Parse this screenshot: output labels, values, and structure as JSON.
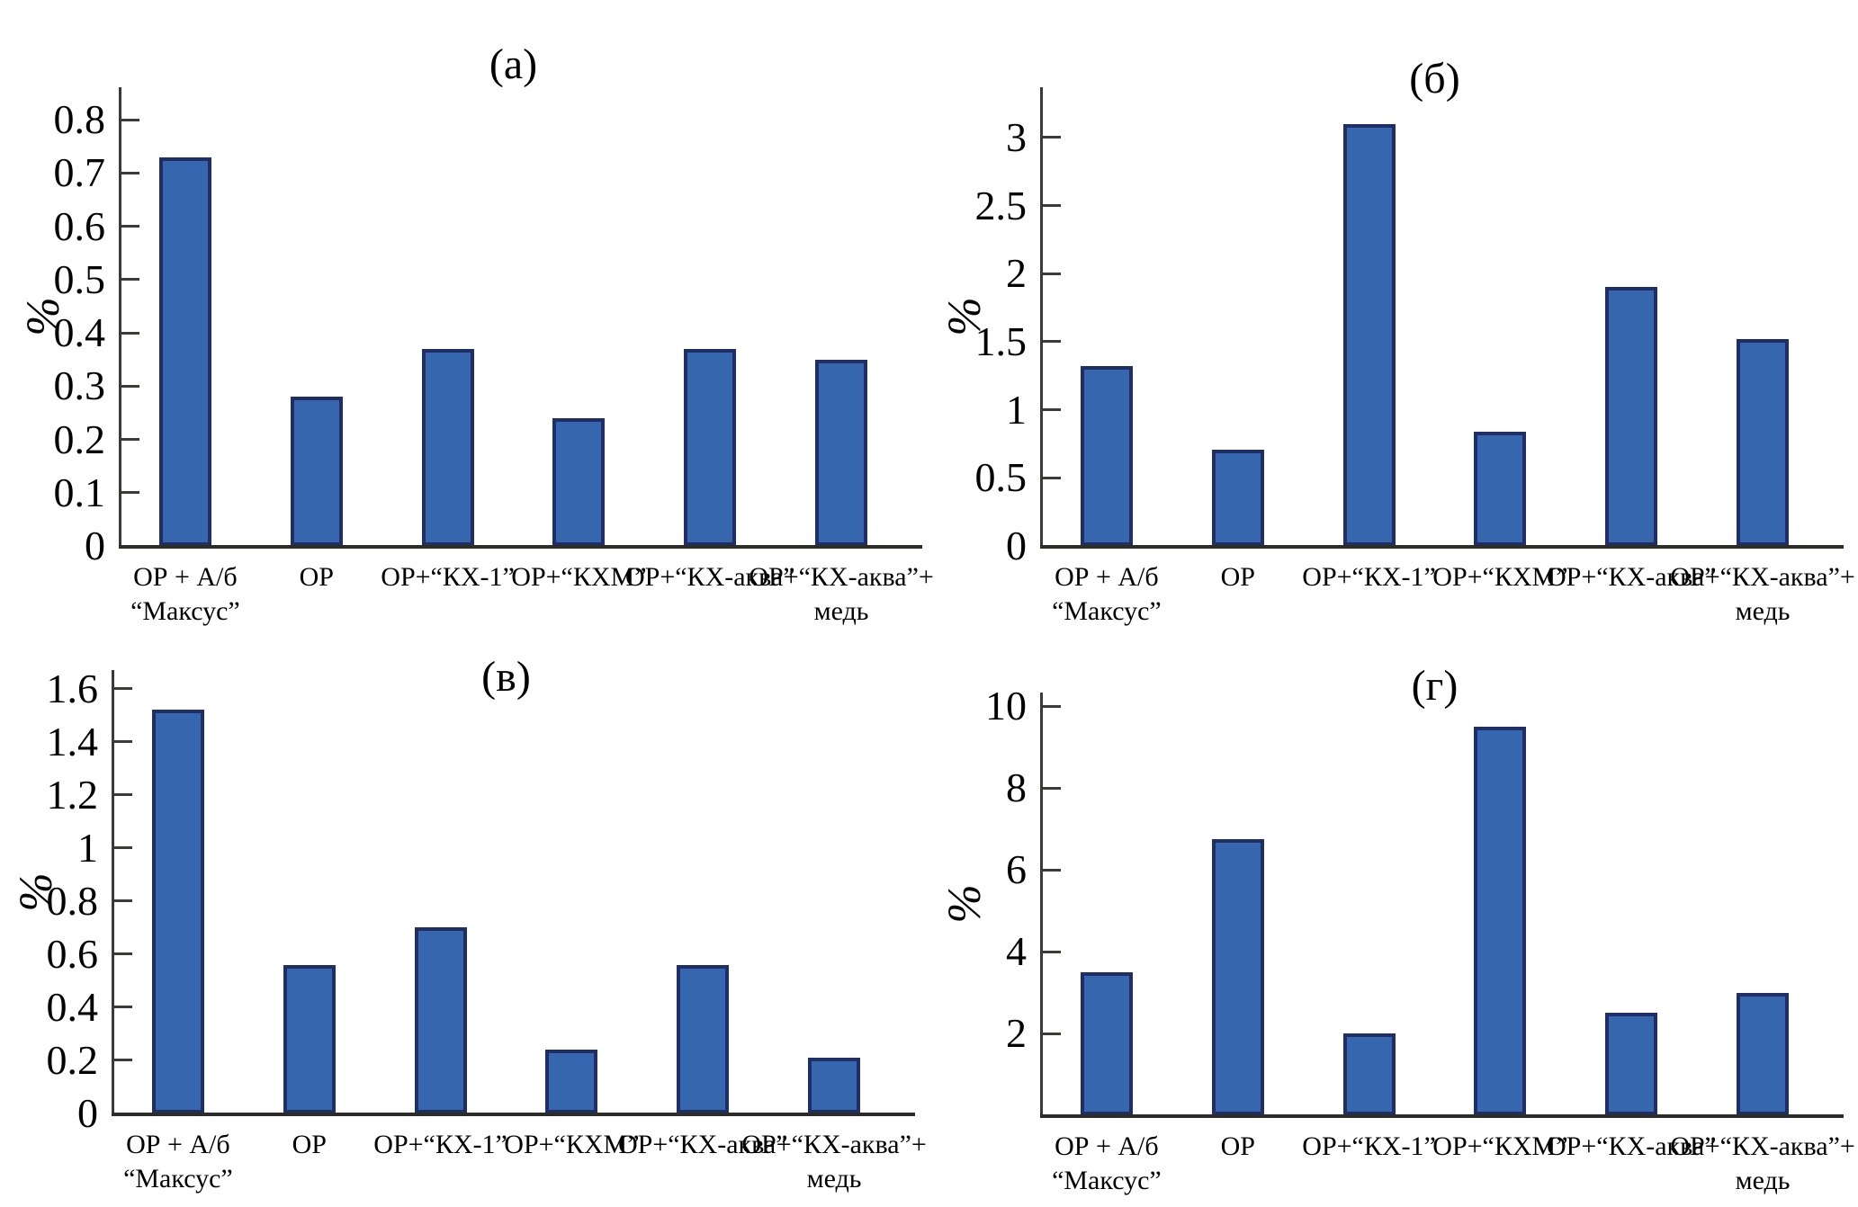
{
  "figure": {
    "background": "#ffffff",
    "bar_fill": "#3566ae",
    "bar_border": "#1f2f66",
    "axis_color": "#3a3a36"
  },
  "chart_data": [
    {
      "type": "bar",
      "title": "(а)",
      "ylabel": "%",
      "xlabel": "",
      "grid": false,
      "legend": false,
      "ylim": [
        0,
        0.861
      ],
      "yticks": [
        {
          "v": 0,
          "label": "0"
        },
        {
          "v": 0.1,
          "label": "0.1"
        },
        {
          "v": 0.2,
          "label": "0.2"
        },
        {
          "v": 0.3,
          "label": "0.3"
        },
        {
          "v": 0.4,
          "label": "0.4"
        },
        {
          "v": 0.5,
          "label": "0.5"
        },
        {
          "v": 0.6,
          "label": "0.6"
        },
        {
          "v": 0.7,
          "label": "0.7"
        },
        {
          "v": 0.8,
          "label": "0.8"
        }
      ],
      "categories": [
        [
          "ОР + А/б",
          "“Максус”"
        ],
        [
          "ОР"
        ],
        [
          "ОР+“КХ-1”"
        ],
        [
          "ОР+“КХМ”"
        ],
        [
          "ОР+“КХ-аква”"
        ],
        [
          "ОР+“КХ-аква”+",
          "медь"
        ]
      ],
      "values": [
        0.73,
        0.28,
        0.37,
        0.24,
        0.37,
        0.35
      ]
    },
    {
      "type": "bar",
      "title": "(б)",
      "ylabel": "%",
      "xlabel": "",
      "grid": false,
      "legend": false,
      "ylim": [
        0,
        3.37
      ],
      "yticks": [
        {
          "v": 0,
          "label": "0"
        },
        {
          "v": 0.5,
          "label": "0.5"
        },
        {
          "v": 1,
          "label": "1"
        },
        {
          "v": 1.5,
          "label": "1.5"
        },
        {
          "v": 2,
          "label": "2"
        },
        {
          "v": 2.5,
          "label": "2.5"
        },
        {
          "v": 3,
          "label": "3"
        }
      ],
      "categories": [
        [
          "ОР + А/б",
          "“Максус”"
        ],
        [
          "ОР"
        ],
        [
          "ОР+“КХ-1”"
        ],
        [
          "ОР+“КХМ”"
        ],
        [
          "ОР+“КХ-аква”"
        ],
        [
          "ОР+“КХ-аква”+",
          "медь"
        ]
      ],
      "values": [
        1.32,
        0.71,
        3.1,
        0.84,
        1.9,
        1.52
      ]
    },
    {
      "type": "bar",
      "title": "(в)",
      "ylabel": "%",
      "xlabel": "",
      "grid": false,
      "legend": false,
      "ylim": [
        0,
        1.67
      ],
      "yticks": [
        {
          "v": 0,
          "label": "0"
        },
        {
          "v": 0.2,
          "label": "0.2"
        },
        {
          "v": 0.4,
          "label": "0.4"
        },
        {
          "v": 0.6,
          "label": "0.6"
        },
        {
          "v": 0.8,
          "label": "0.8"
        },
        {
          "v": 1,
          "label": "1"
        },
        {
          "v": 1.2,
          "label": "1.2"
        },
        {
          "v": 1.4,
          "label": "1.4"
        },
        {
          "v": 1.6,
          "label": "1.6"
        }
      ],
      "categories": [
        [
          "ОР + А/б",
          "“Максус”"
        ],
        [
          "ОР"
        ],
        [
          "ОР+“КХ-1”"
        ],
        [
          "ОР+“КХМ”"
        ],
        [
          "ОР+“КХ-аква”"
        ],
        [
          "ОР+“КХ-аква”+",
          "медь"
        ]
      ],
      "values": [
        1.52,
        0.56,
        0.7,
        0.24,
        0.56,
        0.21
      ]
    },
    {
      "type": "bar",
      "title": "(г)",
      "ylabel": "%",
      "xlabel": "",
      "grid": false,
      "legend": false,
      "ylim": [
        0,
        10.33
      ],
      "yticks": [
        {
          "v": 2,
          "label": "2"
        },
        {
          "v": 4,
          "label": "4"
        },
        {
          "v": 6,
          "label": "6"
        },
        {
          "v": 8,
          "label": "8"
        },
        {
          "v": 10,
          "label": "10"
        }
      ],
      "categories": [
        [
          "ОР + А/б",
          "“Максус”"
        ],
        [
          "ОР"
        ],
        [
          "ОР+“КХ-1”"
        ],
        [
          "ОР+“КХМ”"
        ],
        [
          "ОР+“КХ-аква”"
        ],
        [
          "ОР+“КХ-аква”+",
          "медь"
        ]
      ],
      "values": [
        3.5,
        6.75,
        2.0,
        9.5,
        2.5,
        3.0
      ]
    }
  ]
}
